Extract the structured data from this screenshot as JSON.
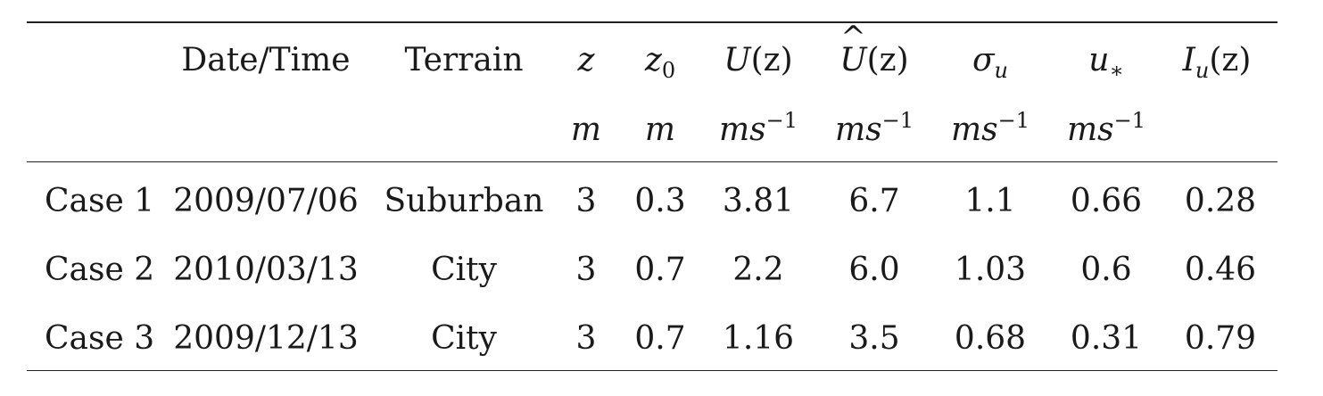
{
  "header": {
    "date_time": "Date/Time",
    "terrain": "Terrain",
    "z": "z",
    "z0_base": "z",
    "z0_sub": "0",
    "U_sym": "U",
    "U_arg": "(z)",
    "Uhat_sym": "U",
    "Uhat_mark": "^",
    "Uhat_arg": "(z)",
    "sigma_base": "σ",
    "sigma_sub": "u",
    "ustar_base": "u",
    "ustar_sub": "∗",
    "I_base": "I",
    "I_sub": "u",
    "I_arg": "(z)"
  },
  "units": {
    "z": "m",
    "z0": "m",
    "U": {
      "base": "ms",
      "sup": "−1"
    },
    "Uhat": {
      "base": "ms",
      "sup": "−1"
    },
    "sigma": {
      "base": "ms",
      "sup": "−1"
    },
    "ustar": {
      "base": "ms",
      "sup": "−1"
    }
  },
  "rows": [
    {
      "case": "Case 1",
      "date": "2009/07/06",
      "terrain": "Suburban",
      "z": "3",
      "z0": "0.3",
      "U": "3.81",
      "Uhat": "6.7",
      "sigma": "1.1",
      "ustar": "0.66",
      "I": "0.28"
    },
    {
      "case": "Case 2",
      "date": "2010/03/13",
      "terrain": "City",
      "z": "3",
      "z0": "0.7",
      "U": "2.2",
      "Uhat": "6.0",
      "sigma": "1.03",
      "ustar": "0.6",
      "I": "0.46"
    },
    {
      "case": "Case 3",
      "date": "2009/12/13",
      "terrain": "City",
      "z": "3",
      "z0": "0.7",
      "U": "1.16",
      "Uhat": "3.5",
      "sigma": "0.68",
      "ustar": "0.31",
      "I": "0.79"
    }
  ]
}
